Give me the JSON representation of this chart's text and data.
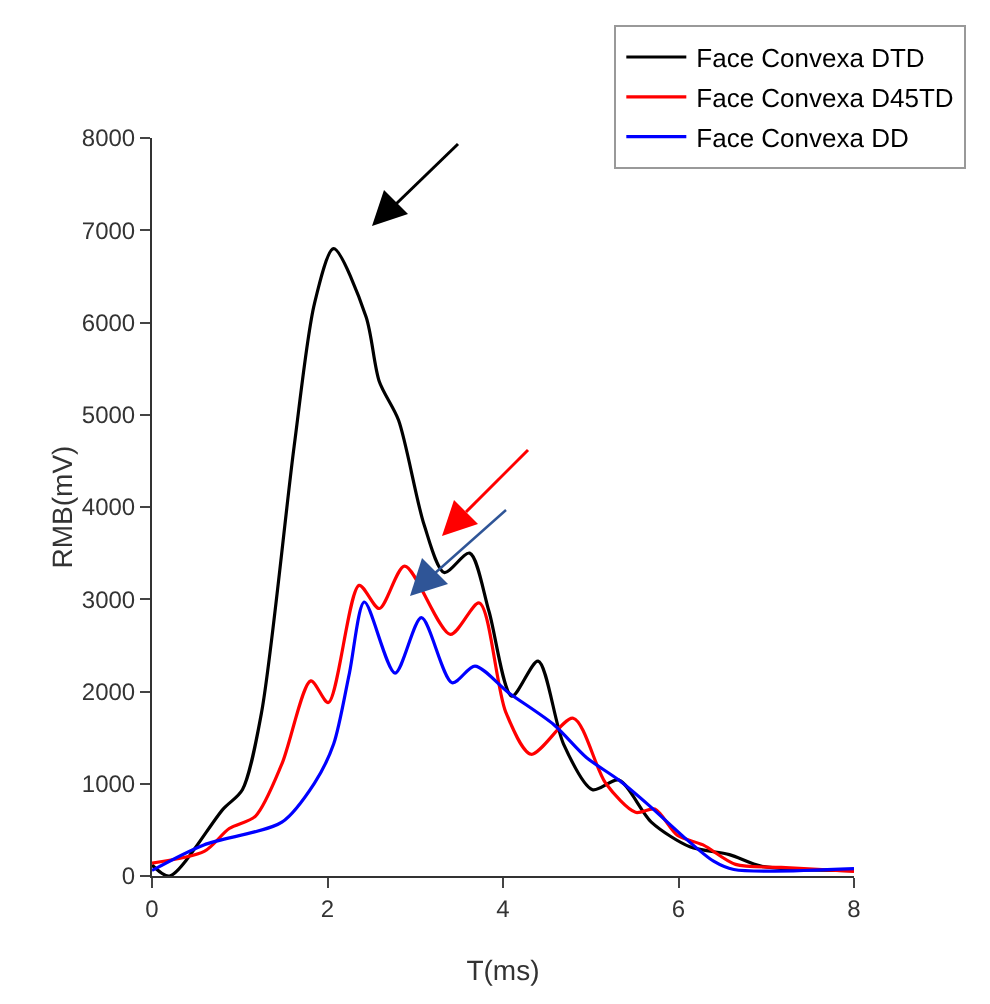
{
  "chart_data": {
    "type": "line",
    "xlabel": "T(ms)",
    "ylabel": "RMB(mV)",
    "xlim": [
      0,
      8
    ],
    "xticks": [
      0,
      2,
      4,
      6,
      8
    ],
    "ylim": [
      0,
      8000
    ],
    "yticks": [
      0,
      1000,
      2000,
      3000,
      4000,
      5000,
      6000,
      7000,
      8000
    ],
    "grid": false,
    "legend": "top right",
    "marker": "none",
    "line_style": "solid",
    "series": [
      {
        "name": "Face Convexa DTD",
        "color": "#000000",
        "x": [
          0,
          0.2,
          0.81,
          1.03,
          1.25,
          1.62,
          1.85,
          2.07,
          2.44,
          2.59,
          2.81,
          3.1,
          3.33,
          3.62,
          3.84,
          4.1,
          4.4,
          4.69,
          5.02,
          5.32,
          5.69,
          6.13,
          6.58,
          6.95,
          8
        ],
        "values": [
          120,
          0,
          725,
          935,
          1780,
          4660,
          6200,
          6800,
          6060,
          5360,
          4940,
          3810,
          3290,
          3500,
          2870,
          1950,
          2330,
          1430,
          935,
          1040,
          584,
          316,
          232,
          105,
          57
        ]
      },
      {
        "name": "Face Convexa D45TD",
        "color": "#ff0000",
        "x": [
          0,
          0.6,
          0.88,
          1.18,
          1.48,
          1.81,
          2.01,
          2.36,
          2.59,
          2.88,
          3.4,
          3.73,
          4.03,
          4.32,
          4.8,
          5.17,
          5.51,
          5.73,
          5.99,
          6.28,
          6.65,
          7.17,
          8
        ],
        "values": [
          140,
          270,
          515,
          650,
          1215,
          2115,
          1880,
          3150,
          2900,
          3360,
          2620,
          2960,
          1780,
          1320,
          1710,
          1005,
          690,
          725,
          440,
          337,
          126,
          93,
          50
        ]
      },
      {
        "name": "Face Convexa DD",
        "color": "#0000ff",
        "x": [
          0,
          0.59,
          1.48,
          1.85,
          2.07,
          2.25,
          2.42,
          2.77,
          3.07,
          3.42,
          3.68,
          4.06,
          4.58,
          4.95,
          5.32,
          5.67,
          6.04,
          6.4,
          6.63,
          8
        ],
        "values": [
          60,
          337,
          584,
          1005,
          1430,
          2200,
          2970,
          2200,
          2800,
          2095,
          2275,
          1990,
          1640,
          1285,
          1040,
          760,
          440,
          160,
          70,
          80
        ]
      }
    ]
  }
}
